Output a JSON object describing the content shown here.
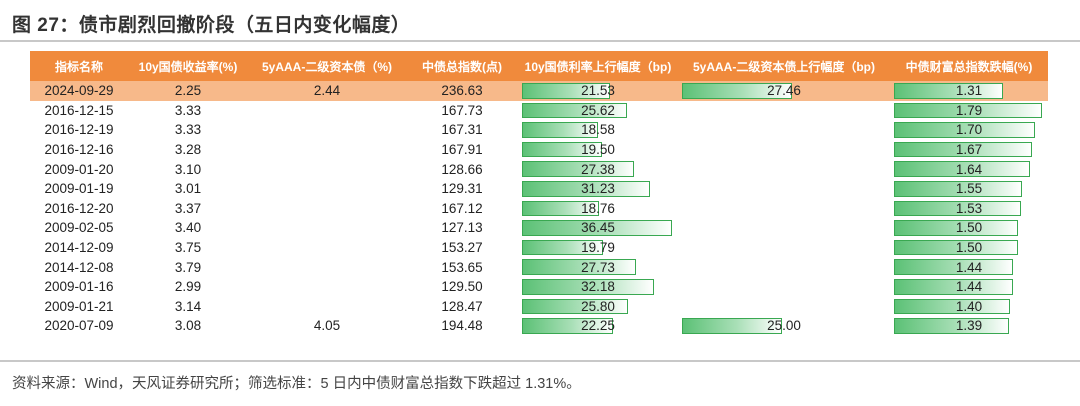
{
  "title": "图 27：债市剧烈回撤阶段（五日内变化幅度）",
  "columns": [
    "指标名称",
    "10y国债收益率(%)",
    "5yAAA-二级资本债（%)",
    "中债总指数(点)",
    "10y国债利率上行幅度（bp)",
    "5yAAA-二级资本债上行幅度（bp)",
    "中债财富总指数跌幅(%)"
  ],
  "rows": [
    {
      "date": "2024-09-29",
      "y10": "2.25",
      "cap5": "2.44",
      "index": "236.63",
      "bp10": "21.53",
      "bpcap": "27.46",
      "drop": "1.31",
      "bp10_v": 21.53,
      "bpcap_v": 27.46,
      "drop_v": 1.31
    },
    {
      "date": "2016-12-15",
      "y10": "3.33",
      "cap5": "",
      "index": "167.73",
      "bp10": "25.62",
      "bpcap": "",
      "drop": "1.79",
      "bp10_v": 25.62,
      "bpcap_v": null,
      "drop_v": 1.79
    },
    {
      "date": "2016-12-19",
      "y10": "3.33",
      "cap5": "",
      "index": "167.31",
      "bp10": "18.58",
      "bpcap": "",
      "drop": "1.70",
      "bp10_v": 18.58,
      "bpcap_v": null,
      "drop_v": 1.7
    },
    {
      "date": "2016-12-16",
      "y10": "3.28",
      "cap5": "",
      "index": "167.91",
      "bp10": "19.50",
      "bpcap": "",
      "drop": "1.67",
      "bp10_v": 19.5,
      "bpcap_v": null,
      "drop_v": 1.67
    },
    {
      "date": "2009-01-20",
      "y10": "3.10",
      "cap5": "",
      "index": "128.66",
      "bp10": "27.38",
      "bpcap": "",
      "drop": "1.64",
      "bp10_v": 27.38,
      "bpcap_v": null,
      "drop_v": 1.64
    },
    {
      "date": "2009-01-19",
      "y10": "3.01",
      "cap5": "",
      "index": "129.31",
      "bp10": "31.23",
      "bpcap": "",
      "drop": "1.55",
      "bp10_v": 31.23,
      "bpcap_v": null,
      "drop_v": 1.55
    },
    {
      "date": "2016-12-20",
      "y10": "3.37",
      "cap5": "",
      "index": "167.12",
      "bp10": "18.76",
      "bpcap": "",
      "drop": "1.53",
      "bp10_v": 18.76,
      "bpcap_v": null,
      "drop_v": 1.53
    },
    {
      "date": "2009-02-05",
      "y10": "3.40",
      "cap5": "",
      "index": "127.13",
      "bp10": "36.45",
      "bpcap": "",
      "drop": "1.50",
      "bp10_v": 36.45,
      "bpcap_v": null,
      "drop_v": 1.5
    },
    {
      "date": "2014-12-09",
      "y10": "3.75",
      "cap5": "",
      "index": "153.27",
      "bp10": "19.79",
      "bpcap": "",
      "drop": "1.50",
      "bp10_v": 19.79,
      "bpcap_v": null,
      "drop_v": 1.5
    },
    {
      "date": "2014-12-08",
      "y10": "3.79",
      "cap5": "",
      "index": "153.65",
      "bp10": "27.73",
      "bpcap": "",
      "drop": "1.44",
      "bp10_v": 27.73,
      "bpcap_v": null,
      "drop_v": 1.44
    },
    {
      "date": "2009-01-16",
      "y10": "2.99",
      "cap5": "",
      "index": "129.50",
      "bp10": "32.18",
      "bpcap": "",
      "drop": "1.44",
      "bp10_v": 32.18,
      "bpcap_v": null,
      "drop_v": 1.44
    },
    {
      "date": "2009-01-21",
      "y10": "3.14",
      "cap5": "",
      "index": "128.47",
      "bp10": "25.80",
      "bpcap": "",
      "drop": "1.40",
      "bp10_v": 25.8,
      "bpcap_v": null,
      "drop_v": 1.4
    },
    {
      "date": "2020-07-09",
      "y10": "3.08",
      "cap5": "4.05",
      "index": "194.48",
      "bp10": "22.25",
      "bpcap": "25.00",
      "drop": "1.39",
      "bp10_v": 22.25,
      "bpcap_v": 25.0,
      "drop_v": 1.39
    }
  ],
  "highlight_row": 0,
  "source": "资料来源：Wind，天风证券研究所；筛选标准：5 日内中债财富总指数下跌超过 1.31%。",
  "colors": {
    "header": "#f08a3c",
    "highlight": "#f7b98a",
    "bar": "#5cc176",
    "bar_border": "#39a851"
  }
}
